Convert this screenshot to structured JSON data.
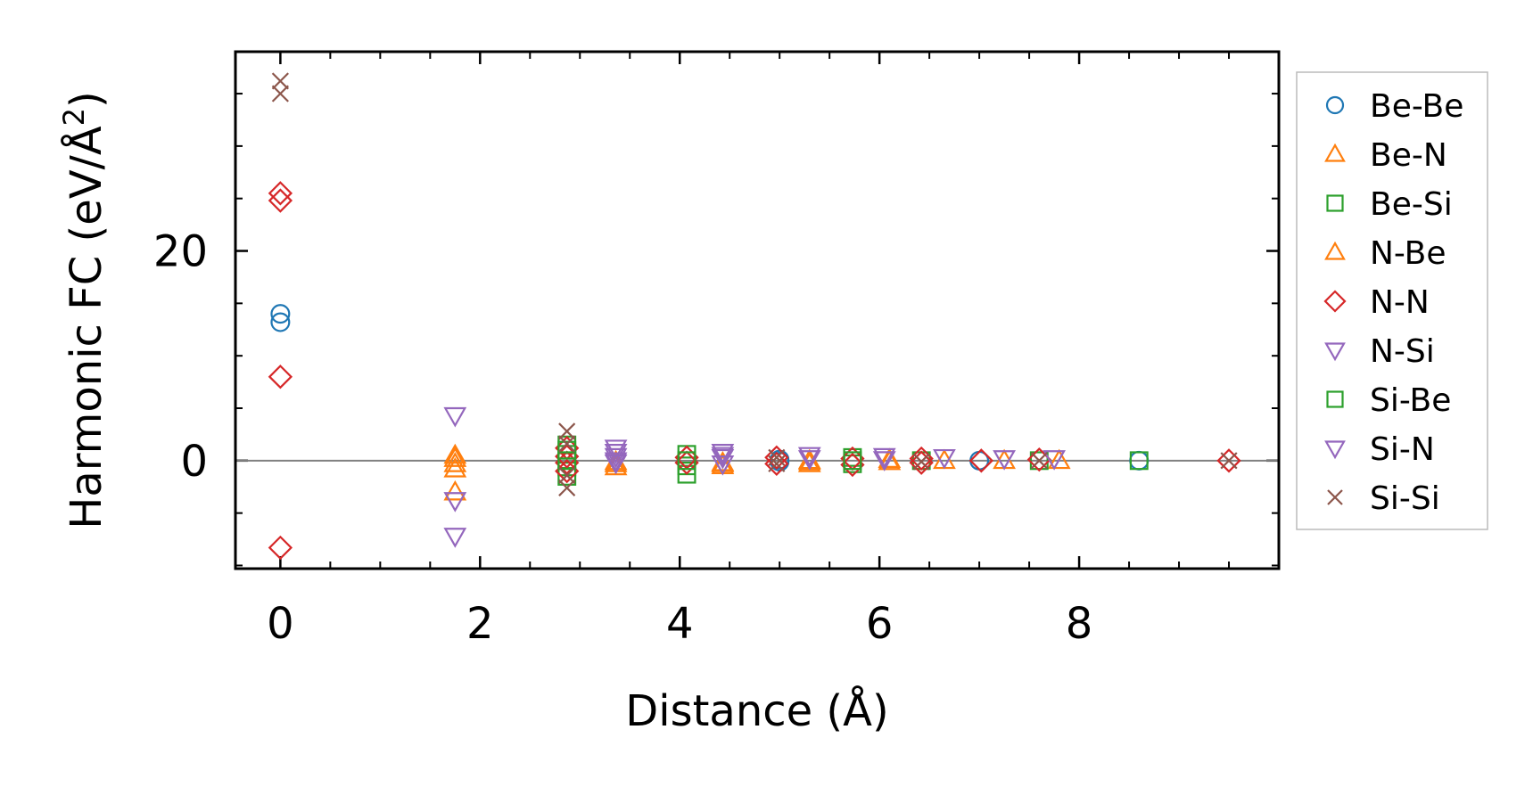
{
  "chart_data": {
    "type": "scatter",
    "xlabel": "Distance (Å)",
    "ylabel_main": "Harmonic FC (eV/Å",
    "ylabel_sup": "2",
    "ylabel_close": ")",
    "xlim": [
      -0.45,
      10.0
    ],
    "ylim": [
      -10.3,
      39.0
    ],
    "xticks": [
      0,
      2,
      4,
      6,
      8
    ],
    "yticks": [
      0,
      20
    ],
    "xtick_labels": [
      "0",
      "2",
      "4",
      "6",
      "8"
    ],
    "ytick_labels": [
      "0",
      "20"
    ],
    "zero_line": true,
    "grid": false,
    "legend_position": "outside-right",
    "series": [
      {
        "name": "Be-Be",
        "marker": "circle",
        "color": "#1f77b4",
        "points": [
          [
            0,
            14.0
          ],
          [
            0,
            13.2
          ],
          [
            5.0,
            0.1
          ],
          [
            5.0,
            -0.1
          ],
          [
            7.0,
            0.0
          ],
          [
            8.6,
            0.0
          ]
        ]
      },
      {
        "name": "Be-N",
        "marker": "triangle-up",
        "color": "#ff7f0e",
        "points": [
          [
            1.75,
            0.5
          ],
          [
            1.75,
            -0.3
          ],
          [
            1.75,
            -3.0
          ],
          [
            3.36,
            -0.3
          ],
          [
            3.36,
            -0.6
          ],
          [
            4.43,
            -0.2
          ],
          [
            4.43,
            -0.5
          ],
          [
            5.3,
            -0.1
          ],
          [
            5.3,
            -0.3
          ],
          [
            6.1,
            -0.1
          ],
          [
            6.65,
            0.0
          ],
          [
            7.25,
            0.0
          ],
          [
            7.8,
            0.0
          ]
        ]
      },
      {
        "name": "Be-Si",
        "marker": "square",
        "color": "#2ca02c",
        "points": [
          [
            2.87,
            1.5
          ],
          [
            2.87,
            0.6
          ],
          [
            2.87,
            -0.6
          ],
          [
            2.87,
            -1.5
          ],
          [
            4.07,
            0.6
          ],
          [
            4.07,
            -0.5
          ],
          [
            4.07,
            -1.3
          ],
          [
            5.73,
            0.3
          ],
          [
            5.73,
            -0.3
          ],
          [
            6.42,
            0.0
          ],
          [
            7.6,
            0.0
          ],
          [
            8.6,
            0.0
          ]
        ]
      },
      {
        "name": "N-Be",
        "marker": "triangle-up",
        "color": "#ff7f0e",
        "points": [
          [
            1.75,
            0.2
          ],
          [
            1.75,
            -0.8
          ],
          [
            3.36,
            -0.1
          ],
          [
            4.43,
            -0.3
          ],
          [
            5.3,
            0.0
          ],
          [
            6.1,
            0.1
          ]
        ]
      },
      {
        "name": "N-N",
        "marker": "diamond",
        "color": "#d62728",
        "points": [
          [
            0,
            25.5
          ],
          [
            0,
            24.8
          ],
          [
            0,
            8.0
          ],
          [
            0,
            -8.3
          ],
          [
            2.87,
            1.2
          ],
          [
            2.87,
            0.4
          ],
          [
            2.87,
            -0.2
          ],
          [
            2.87,
            -1.0
          ],
          [
            4.07,
            0.3
          ],
          [
            4.07,
            -0.2
          ],
          [
            4.97,
            0.3
          ],
          [
            4.97,
            -0.3
          ],
          [
            5.73,
            0.2
          ],
          [
            5.73,
            -0.4
          ],
          [
            6.42,
            0.2
          ],
          [
            6.42,
            -0.2
          ],
          [
            7.02,
            0.0
          ],
          [
            7.6,
            0.1
          ],
          [
            9.5,
            0.0
          ]
        ]
      },
      {
        "name": "N-Si",
        "marker": "triangle-down",
        "color": "#9467bd",
        "points": [
          [
            1.75,
            4.3
          ],
          [
            1.75,
            -3.8
          ],
          [
            1.75,
            -7.2
          ],
          [
            3.36,
            1.2
          ],
          [
            3.36,
            0.4
          ],
          [
            3.36,
            -0.2
          ],
          [
            4.43,
            0.8
          ],
          [
            4.43,
            0.3
          ],
          [
            4.43,
            -0.3
          ],
          [
            5.3,
            0.5
          ],
          [
            6.05,
            0.4
          ],
          [
            6.65,
            0.3
          ],
          [
            7.25,
            0.2
          ],
          [
            7.75,
            0.2
          ]
        ]
      },
      {
        "name": "Si-Be",
        "marker": "square",
        "color": "#2ca02c",
        "points": [
          [
            2.87,
            1.0
          ],
          [
            2.87,
            0.0
          ],
          [
            4.07,
            0.0
          ],
          [
            5.73,
            0.0
          ]
        ]
      },
      {
        "name": "Si-N",
        "marker": "triangle-down",
        "color": "#9467bd",
        "points": [
          [
            3.36,
            0.8
          ],
          [
            3.36,
            0.0
          ],
          [
            4.43,
            0.5
          ],
          [
            5.3,
            0.2
          ],
          [
            6.05,
            0.1
          ]
        ]
      },
      {
        "name": "Si-Si",
        "marker": "x",
        "color": "#8c564b",
        "points": [
          [
            0,
            36.2
          ],
          [
            0,
            35.0
          ],
          [
            2.87,
            2.8
          ],
          [
            2.87,
            1.6
          ],
          [
            2.87,
            -1.4
          ],
          [
            2.87,
            -2.6
          ],
          [
            4.97,
            0.3
          ],
          [
            4.97,
            -0.3
          ],
          [
            6.42,
            -0.1
          ],
          [
            7.6,
            0.0
          ],
          [
            9.5,
            0.0
          ]
        ]
      }
    ]
  }
}
